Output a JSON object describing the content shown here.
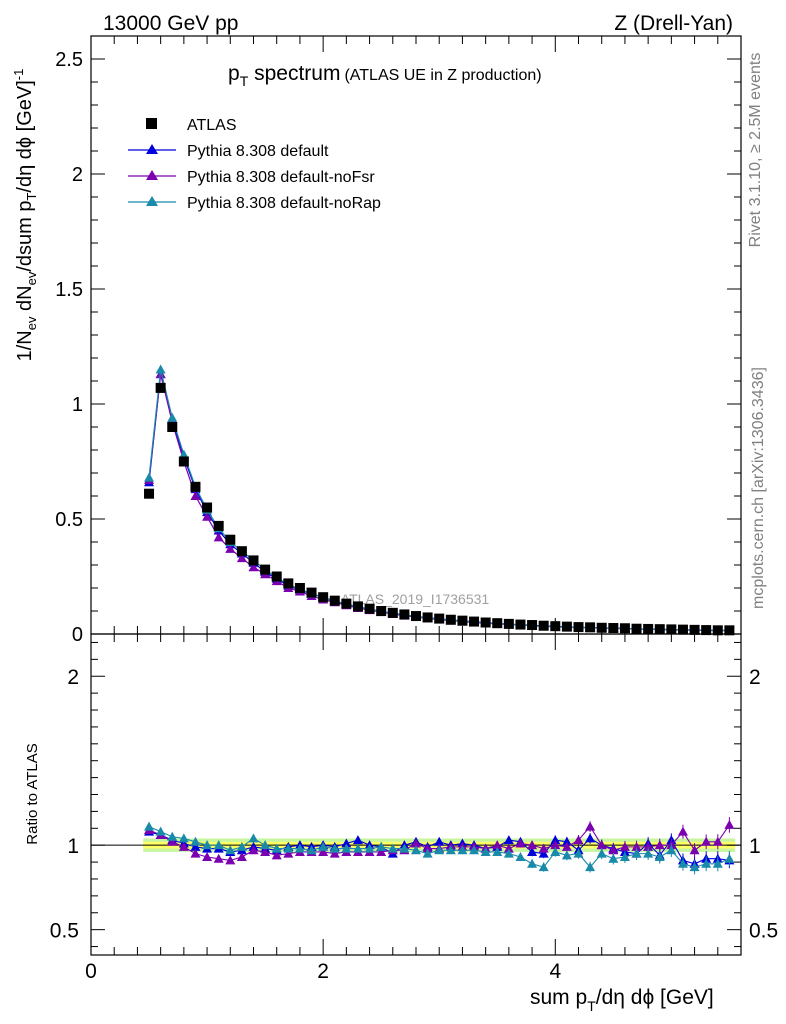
{
  "header": {
    "left": "13000 GeV pp",
    "right": "Z (Drell-Yan)"
  },
  "side": {
    "rivet": "Rivet 3.1.10, ≥ 2.5M events",
    "source": "mcplots.cern.ch [arXiv:1306.3436]"
  },
  "watermark": "ATLAS_2019_I1736531",
  "colors": {
    "data": "#000000",
    "default": "#0000dd",
    "noFsr": "#7a00b0",
    "noRap": "#1a8aaa",
    "band_inner": "#ffff66",
    "band_outer": "#c8f5a0"
  },
  "chart_data": [
    {
      "type": "scatter",
      "title_main": "p",
      "title_sub": "T",
      "title_rest": " spectrum",
      "title_note": "(ATLAS UE in Z production)",
      "ylabel": "1/N_ev dN_ev/dsum p_T/dη dϕ [GeV]^-1",
      "ylim": [
        0,
        2.6
      ],
      "xlim": [
        0,
        5.6
      ],
      "yticks": [
        "0",
        "0.5",
        "1",
        "1.5",
        "2",
        "2.5"
      ],
      "legend_position": "top-left",
      "legend": [
        "ATLAS",
        "Pythia 8.308 default",
        "Pythia 8.308 default-noFsr",
        "Pythia 8.308 default-noRap"
      ],
      "x": [
        0.5,
        0.6,
        0.7,
        0.8,
        0.9,
        1.0,
        1.1,
        1.2,
        1.3,
        1.4,
        1.5,
        1.6,
        1.7,
        1.8,
        1.9,
        2.0,
        2.1,
        2.2,
        2.3,
        2.4,
        2.5,
        2.6,
        2.7,
        2.8,
        2.9,
        3.0,
        3.1,
        3.2,
        3.3,
        3.4,
        3.5,
        3.6,
        3.7,
        3.8,
        3.9,
        4.0,
        4.1,
        4.2,
        4.3,
        4.4,
        4.5,
        4.6,
        4.7,
        4.8,
        4.9,
        5.0,
        5.1,
        5.2,
        5.3,
        5.4,
        5.5
      ],
      "series": [
        {
          "name": "ATLAS",
          "values": [
            0.61,
            1.07,
            0.9,
            0.75,
            0.64,
            0.55,
            0.47,
            0.41,
            0.36,
            0.32,
            0.28,
            0.25,
            0.22,
            0.2,
            0.18,
            0.16,
            0.145,
            0.132,
            0.12,
            0.11,
            0.1,
            0.092,
            0.085,
            0.078,
            0.072,
            0.067,
            0.062,
            0.058,
            0.054,
            0.05,
            0.047,
            0.044,
            0.041,
            0.039,
            0.036,
            0.034,
            0.032,
            0.03,
            0.029,
            0.027,
            0.026,
            0.025,
            0.023,
            0.022,
            0.021,
            0.02,
            0.019,
            0.018,
            0.017,
            0.016,
            0.016
          ]
        },
        {
          "name": "Pythia 8.308 default",
          "values": [
            0.66,
            1.13,
            0.93,
            0.77,
            0.63,
            0.53,
            0.45,
            0.39,
            0.35,
            0.31,
            0.27,
            0.24,
            0.21,
            0.19,
            0.175,
            0.16,
            0.143,
            0.13,
            0.119,
            0.108,
            0.099,
            0.09,
            0.084,
            0.077,
            0.071,
            0.066,
            0.061,
            0.057,
            0.053,
            0.049,
            0.046,
            0.043,
            0.04,
            0.038,
            0.035,
            0.033,
            0.031,
            0.029,
            0.028,
            0.026,
            0.025,
            0.024,
            0.022,
            0.021,
            0.02,
            0.019,
            0.018,
            0.017,
            0.016,
            0.015,
            0.015
          ]
        },
        {
          "name": "Pythia 8.308 default-noFsr",
          "values": [
            0.67,
            1.13,
            0.92,
            0.75,
            0.6,
            0.51,
            0.42,
            0.37,
            0.33,
            0.29,
            0.26,
            0.23,
            0.2,
            0.185,
            0.165,
            0.15,
            0.138,
            0.125,
            0.113,
            0.104,
            0.095,
            0.087,
            0.08,
            0.074,
            0.068,
            0.063,
            0.058,
            0.054,
            0.05,
            0.047,
            0.044,
            0.041,
            0.039,
            0.036,
            0.034,
            0.032,
            0.03,
            0.029,
            0.027,
            0.026,
            0.025,
            0.024,
            0.022,
            0.021,
            0.02,
            0.019,
            0.018,
            0.017,
            0.016,
            0.016,
            0.016
          ]
        },
        {
          "name": "Pythia 8.308 default-noRap",
          "values": [
            0.68,
            1.15,
            0.94,
            0.78,
            0.64,
            0.54,
            0.46,
            0.4,
            0.36,
            0.32,
            0.28,
            0.245,
            0.215,
            0.195,
            0.175,
            0.158,
            0.142,
            0.13,
            0.118,
            0.108,
            0.099,
            0.09,
            0.083,
            0.076,
            0.07,
            0.065,
            0.06,
            0.056,
            0.052,
            0.048,
            0.045,
            0.042,
            0.039,
            0.035,
            0.033,
            0.031,
            0.03,
            0.028,
            0.027,
            0.025,
            0.024,
            0.023,
            0.021,
            0.02,
            0.019,
            0.018,
            0.017,
            0.016,
            0.015,
            0.014,
            0.015
          ]
        }
      ]
    },
    {
      "type": "scatter",
      "ylabel": "Ratio to ATLAS",
      "xlabel": "sum p_T/dη dϕ [GeV]",
      "ylim": [
        0.35,
        2.25
      ],
      "xlim": [
        0,
        5.6
      ],
      "yticks": [
        "0.5",
        "1",
        "2"
      ],
      "xticks": [
        "0",
        "2",
        "4"
      ],
      "x": [
        0.5,
        0.6,
        0.7,
        0.8,
        0.9,
        1.0,
        1.1,
        1.2,
        1.3,
        1.4,
        1.5,
        1.6,
        1.7,
        1.8,
        1.9,
        2.0,
        2.1,
        2.2,
        2.3,
        2.4,
        2.5,
        2.6,
        2.7,
        2.8,
        2.9,
        3.0,
        3.1,
        3.2,
        3.3,
        3.4,
        3.5,
        3.6,
        3.7,
        3.8,
        3.9,
        4.0,
        4.1,
        4.2,
        4.3,
        4.4,
        4.5,
        4.6,
        4.7,
        4.8,
        4.9,
        5.0,
        5.1,
        5.2,
        5.3,
        5.4,
        5.5
      ],
      "series": [
        {
          "name": "Pythia 8.308 default",
          "values": [
            1.08,
            1.06,
            1.03,
            1.01,
            0.99,
            0.98,
            0.98,
            0.96,
            0.97,
            0.99,
            0.98,
            0.97,
            0.99,
            1.0,
            0.99,
            1.0,
            0.99,
            1.01,
            1.03,
            1.0,
            0.99,
            0.95,
            1.0,
            1.02,
            0.99,
            1.02,
            1.0,
            1.01,
            1.0,
            0.98,
            0.99,
            1.03,
            1.02,
            0.96,
            0.95,
            1.03,
            1.02,
            0.97,
            1.04,
            1.0,
            0.98,
            0.96,
            0.95,
            1.01,
            0.94,
            1.03,
            0.91,
            0.89,
            0.92,
            0.92,
            0.91
          ]
        },
        {
          "name": "Pythia 8.308 default-noFsr",
          "values": [
            1.09,
            1.06,
            1.02,
            0.99,
            0.95,
            0.93,
            0.92,
            0.91,
            0.93,
            0.97,
            0.96,
            0.94,
            0.95,
            0.96,
            0.96,
            0.96,
            0.95,
            0.96,
            0.96,
            0.96,
            0.96,
            0.97,
            0.97,
            1.01,
            0.98,
            0.98,
            0.99,
            0.99,
            0.99,
            0.98,
            1.0,
            0.98,
            1.01,
            1.0,
            0.98,
            1.0,
            0.99,
            1.03,
            1.11,
            1.0,
            0.97,
            0.99,
            0.99,
            0.99,
            1.0,
            1.0,
            1.08,
            0.97,
            1.02,
            1.02,
            1.12
          ]
        },
        {
          "name": "Pythia 8.308 default-noRap",
          "values": [
            1.11,
            1.08,
            1.05,
            1.04,
            1.02,
            1.0,
            1.0,
            0.97,
            0.99,
            1.04,
            1.0,
            0.98,
            0.98,
            0.98,
            0.97,
            0.99,
            0.98,
            0.98,
            0.98,
            0.98,
            0.99,
            0.98,
            0.98,
            0.97,
            0.95,
            0.97,
            0.97,
            0.97,
            0.97,
            0.96,
            0.96,
            0.95,
            0.93,
            0.89,
            0.87,
            0.96,
            0.94,
            0.95,
            0.87,
            0.95,
            0.92,
            0.93,
            0.95,
            0.95,
            0.93,
            0.97,
            0.89,
            0.87,
            0.89,
            0.89,
            0.92
          ]
        }
      ]
    }
  ]
}
